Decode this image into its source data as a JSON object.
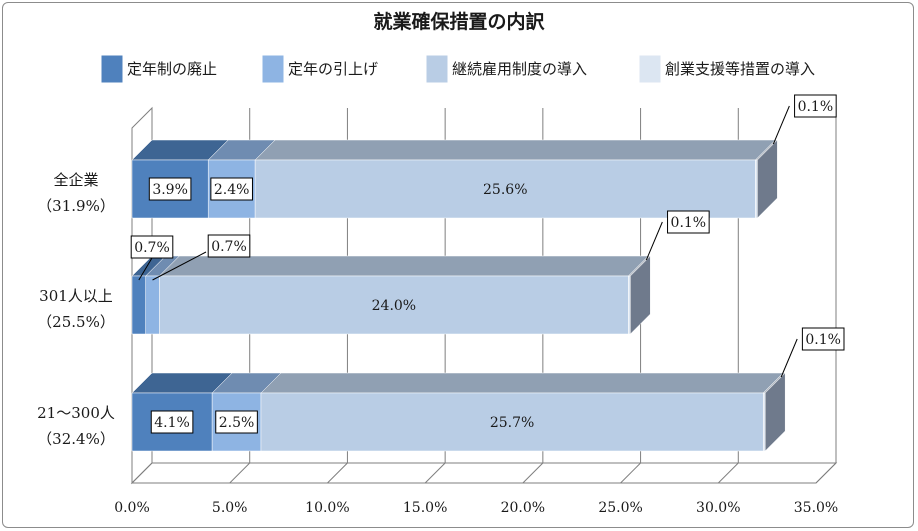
{
  "colors": {
    "abolish": "#4f81bd",
    "raise": "#8eb4e3",
    "continue": "#b9cde5",
    "support": "#dce6f2",
    "grid": "#7f7f7f",
    "label_border": "#000000"
  },
  "chart_data": {
    "type": "bar",
    "orientation": "horizontal",
    "stacked": true,
    "three_d": true,
    "title": "就業確保措置の内訳",
    "legend_position": "top",
    "grid": true,
    "xlim": [
      0,
      35
    ],
    "x_ticks": [
      "0.0%",
      "5.0%",
      "10.0%",
      "15.0%",
      "20.0%",
      "25.0%",
      "30.0%",
      "35.0%"
    ],
    "categories": [
      {
        "name": "全企業",
        "total": "（31.9%）"
      },
      {
        "name": "301人以上",
        "total": "（25.5%）"
      },
      {
        "name": "21～300人",
        "total": "（32.4%）"
      }
    ],
    "series": [
      {
        "name": "定年制の廃止",
        "values": [
          3.9,
          0.7,
          4.1
        ],
        "labels": [
          "3.9%",
          "0.7%",
          "4.1%"
        ]
      },
      {
        "name": "定年の引上げ",
        "values": [
          2.4,
          0.7,
          2.5
        ],
        "labels": [
          "2.4%",
          "0.7%",
          "2.5%"
        ]
      },
      {
        "name": "継続雇用制度の導入",
        "values": [
          25.6,
          24.0,
          25.7
        ],
        "labels": [
          "25.6%",
          "24.0%",
          "25.7%"
        ]
      },
      {
        "name": "創業支援等措置の導入",
        "values": [
          0.1,
          0.1,
          0.1
        ],
        "labels": [
          "0.1%",
          "0.1%",
          "0.1%"
        ]
      }
    ]
  }
}
